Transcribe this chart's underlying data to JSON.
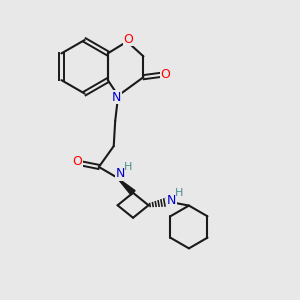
{
  "background_color": "#e8e8e8",
  "atom_colors": {
    "C": "#000000",
    "N": "#0000cd",
    "O": "#ff0000",
    "H": "#4a9090"
  },
  "bond_color": "#1a1a1a",
  "figsize": [
    3.0,
    3.0
  ],
  "dpi": 100,
  "xlim": [
    0,
    10
  ],
  "ylim": [
    0,
    10
  ]
}
